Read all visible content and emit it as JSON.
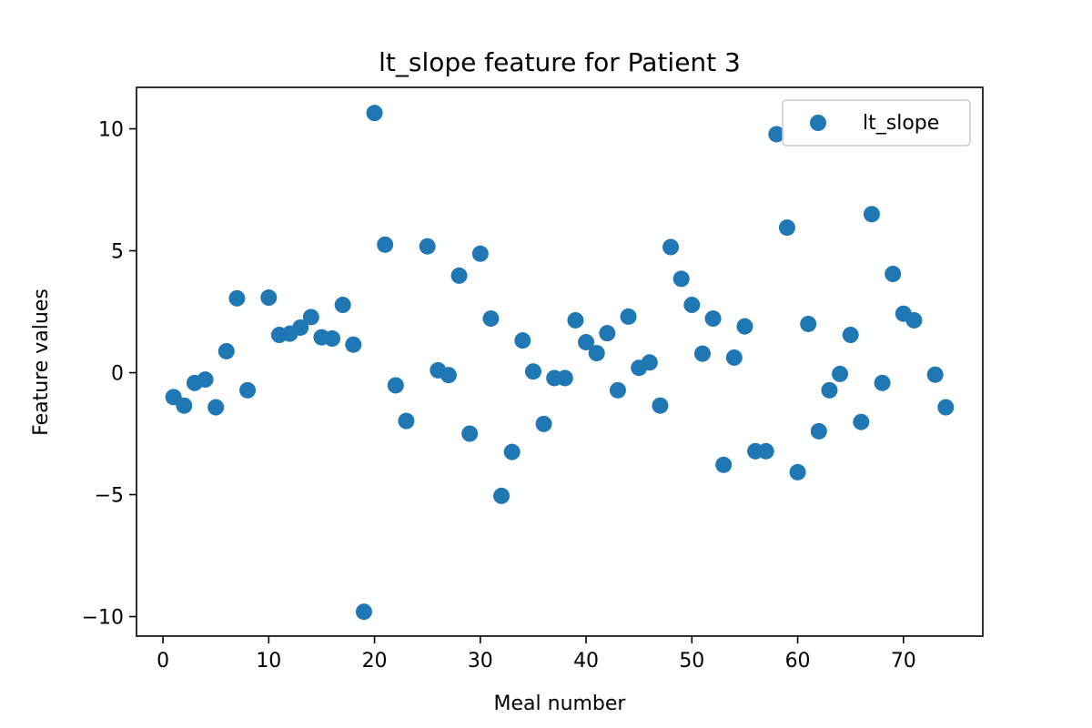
{
  "chart_data": {
    "type": "scatter",
    "title": "lt_slope feature for Patient 3",
    "xlabel": "Meal number",
    "ylabel": "Feature values",
    "xlim": [
      -2.5,
      77.5
    ],
    "ylim": [
      -10.8,
      11.7
    ],
    "xticks": [
      0,
      10,
      20,
      30,
      40,
      50,
      60,
      70
    ],
    "yticks": [
      -10,
      -5,
      0,
      5,
      10
    ],
    "ytick_labels": [
      "−10",
      "−5",
      "0",
      "5",
      "10"
    ],
    "grid": false,
    "legend_position": "top-right",
    "color": "#1f77b4",
    "series": [
      {
        "name": "lt_slope",
        "points": [
          [
            1,
            -1.0
          ],
          [
            2,
            -1.35
          ],
          [
            3,
            -0.42
          ],
          [
            4,
            -0.28
          ],
          [
            5,
            -1.42
          ],
          [
            6,
            0.88
          ],
          [
            7,
            3.05
          ],
          [
            8,
            -0.72
          ],
          [
            10,
            3.08
          ],
          [
            11,
            1.55
          ],
          [
            12,
            1.6
          ],
          [
            13,
            1.85
          ],
          [
            14,
            2.28
          ],
          [
            15,
            1.45
          ],
          [
            16,
            1.4
          ],
          [
            17,
            2.78
          ],
          [
            18,
            1.15
          ],
          [
            19,
            -9.8
          ],
          [
            20,
            10.65
          ],
          [
            21,
            5.25
          ],
          [
            22,
            -0.52
          ],
          [
            23,
            -1.98
          ],
          [
            25,
            5.18
          ],
          [
            26,
            0.1
          ],
          [
            27,
            -0.1
          ],
          [
            28,
            3.98
          ],
          [
            29,
            -2.5
          ],
          [
            30,
            4.88
          ],
          [
            31,
            2.22
          ],
          [
            32,
            -5.05
          ],
          [
            33,
            -3.25
          ],
          [
            34,
            1.32
          ],
          [
            35,
            0.05
          ],
          [
            36,
            -2.1
          ],
          [
            37,
            -0.22
          ],
          [
            38,
            -0.22
          ],
          [
            39,
            2.15
          ],
          [
            40,
            1.25
          ],
          [
            41,
            0.8
          ],
          [
            42,
            1.62
          ],
          [
            43,
            -0.72
          ],
          [
            44,
            2.3
          ],
          [
            45,
            0.2
          ],
          [
            46,
            0.42
          ],
          [
            47,
            -1.35
          ],
          [
            48,
            5.15
          ],
          [
            49,
            3.85
          ],
          [
            50,
            2.78
          ],
          [
            51,
            0.78
          ],
          [
            52,
            2.22
          ],
          [
            53,
            -3.78
          ],
          [
            54,
            0.62
          ],
          [
            55,
            1.9
          ],
          [
            56,
            -3.22
          ],
          [
            57,
            -3.22
          ],
          [
            58,
            9.78
          ],
          [
            59,
            5.95
          ],
          [
            60,
            -4.08
          ],
          [
            61,
            2.0
          ],
          [
            62,
            -2.4
          ],
          [
            63,
            -0.72
          ],
          [
            64,
            -0.05
          ],
          [
            65,
            1.55
          ],
          [
            66,
            -2.02
          ],
          [
            67,
            6.5
          ],
          [
            68,
            -0.42
          ],
          [
            69,
            4.05
          ],
          [
            70,
            2.42
          ],
          [
            71,
            2.15
          ],
          [
            73,
            -0.08
          ],
          [
            74,
            -1.42
          ]
        ]
      }
    ]
  }
}
